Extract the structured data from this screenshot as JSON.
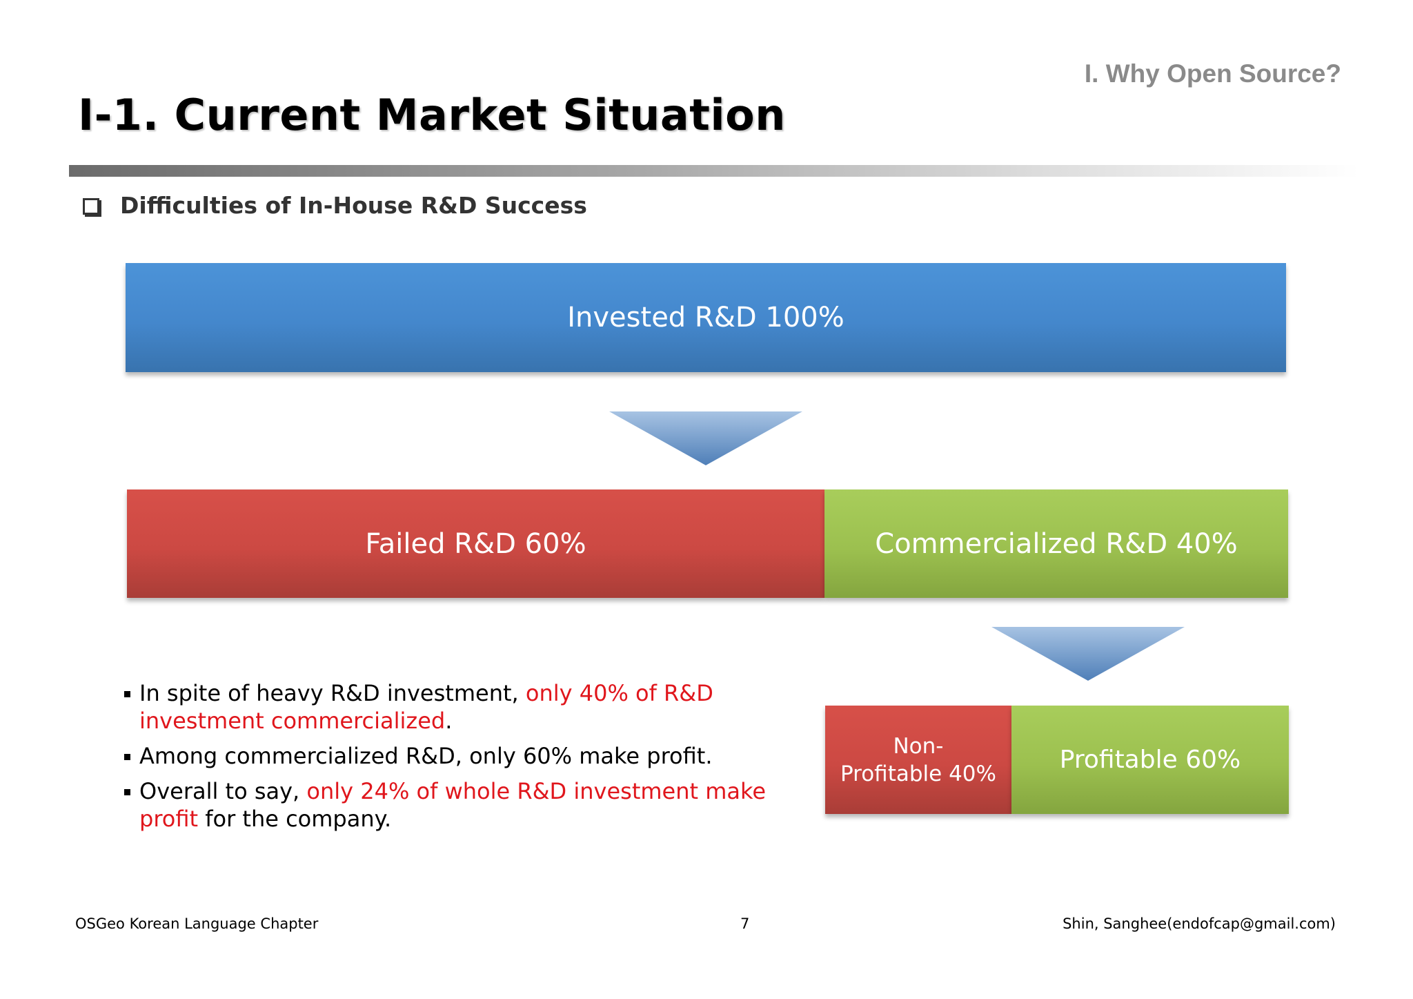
{
  "header": {
    "section_label": "I. Why Open Source?",
    "title": "I-1. Current Market Situation"
  },
  "subtitle": "Difficulties of In-House R&D Success",
  "diagram": {
    "invested": "Invested R&D 100%",
    "failed": "Failed R&D 60%",
    "commercialized": "Commercialized R&D 40%",
    "non_profitable": [
      "Non-",
      "Profitable 40%"
    ],
    "profitable": "Profitable 60%",
    "shares": {
      "failed_pct": 60,
      "commercialized_pct": 40,
      "non_profitable_pct": 40,
      "profitable_pct": 60
    }
  },
  "bullets": [
    {
      "pre": "In spite of heavy R&D investment, ",
      "highlight": "only 40% of R&D investment commercialized",
      "post": "."
    },
    {
      "pre": "Among commercialized R&D, only 60% make profit.",
      "highlight": "",
      "post": ""
    },
    {
      "pre": "Overall to say, ",
      "highlight": "only 24% of whole R&D investment make profit",
      "post": " for the company."
    }
  ],
  "footer": {
    "left": "OSGeo Korean Language Chapter",
    "page_number": "7",
    "right": "Shin, Sanghee(endofcap@gmail.com)"
  },
  "colors": {
    "blue_box": "#4487cc",
    "red_box": "#cc4943",
    "green_box": "#9cc04f",
    "highlight_text": "#e0161c",
    "section_label": "#8a8a8a"
  },
  "icons": {
    "subtitle_marker": "checkbox-icon",
    "flow_arrow": "down-arrow-icon"
  }
}
